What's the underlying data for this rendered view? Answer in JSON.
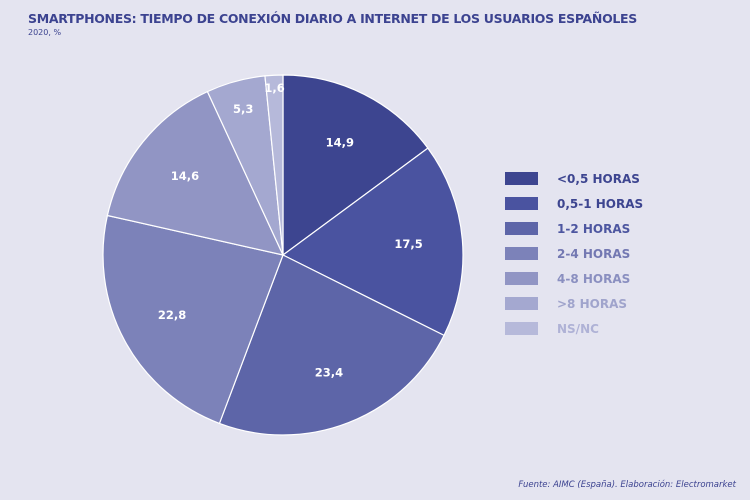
{
  "chart_data": {
    "type": "pie",
    "title": "SMARTPHONES: TIEMPO DE CONEXIÓN DIARIO A INTERNET DE LOS USUARIOS ESPAÑOLES",
    "subtitle": "2020, %",
    "categories": [
      "<0,5 HORAS",
      "0,5-1 HORAS",
      "1-2 HORAS",
      "2-4 HORAS",
      "4-8 HORAS",
      ">8 HORAS",
      "NS/NC"
    ],
    "values": [
      14.9,
      17.5,
      23.4,
      22.8,
      14.6,
      5.3,
      1.6
    ],
    "labels": [
      "14,9",
      "17,5",
      "23,4",
      "22,8",
      "14,6",
      "5,3",
      "1,6"
    ],
    "colors": [
      "#3d4590",
      "#4a53a0",
      "#5d65a8",
      "#7c82b9",
      "#9195c4",
      "#a4a8d0",
      "#b6b9da"
    ],
    "legend_text_colors": [
      "#3d4590",
      "#3d4590",
      "#4d56a0",
      "#7378b2",
      "#8a8fc0",
      "#a0a4cc",
      "#afb2d6"
    ],
    "legend": "right"
  },
  "source": "Fuente: AIMC (España). Elaboración: Electromarket"
}
